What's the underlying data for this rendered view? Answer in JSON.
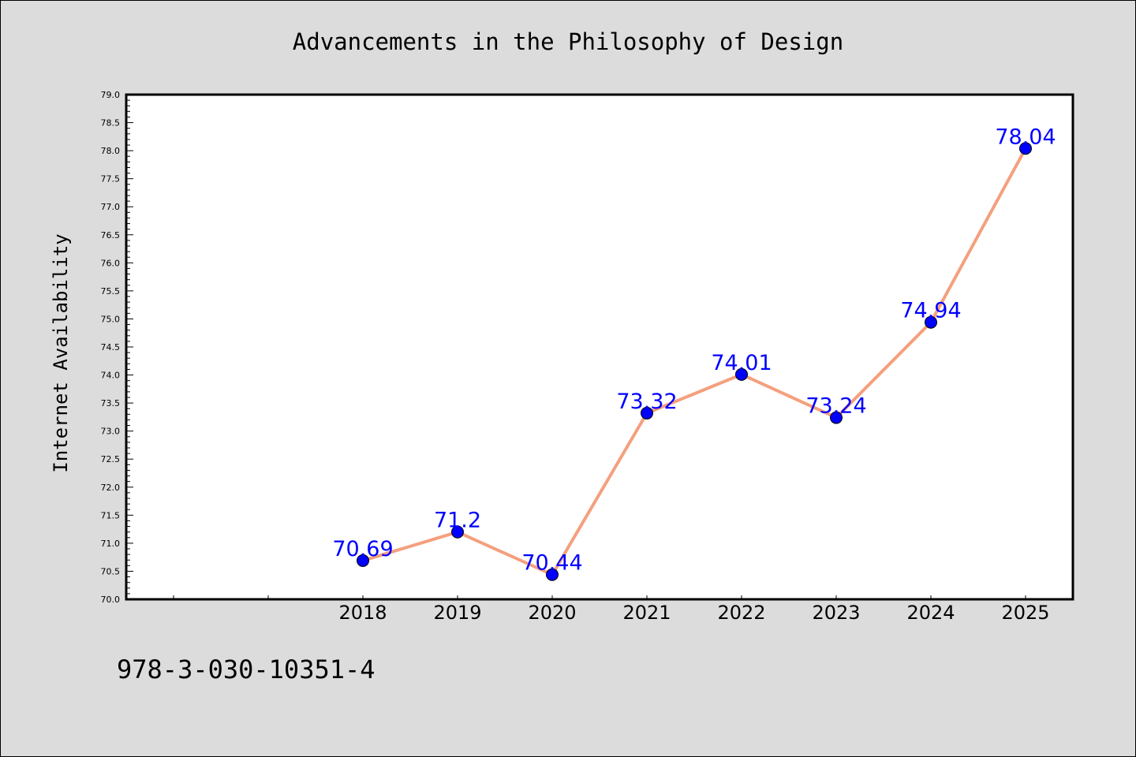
{
  "chart_data": {
    "type": "line",
    "title": "Advancements in the Philosophy of Design",
    "ylabel": "Internet Availability",
    "xlabel": "",
    "x": [
      "2018",
      "2019",
      "2020",
      "2021",
      "2022",
      "2023",
      "2024",
      "2025"
    ],
    "series": [
      {
        "values": [
          70.69,
          71.2,
          70.44,
          73.32,
          74.01,
          73.24,
          74.94,
          78.04
        ],
        "data_labels": [
          "70.69",
          "71.2",
          "70.44",
          "73.32",
          "74.01",
          "73.24",
          "74.94",
          "78.04"
        ]
      }
    ],
    "ylim": [
      70.0,
      79.0
    ],
    "y_ticks": [
      "70.0",
      "70.5",
      "71.0",
      "71.5",
      "72.0",
      "72.5",
      "73.0",
      "73.5",
      "74.0",
      "74.5",
      "75.0",
      "75.5",
      "76.0",
      "76.5",
      "77.0",
      "77.5",
      "78.0",
      "78.5",
      "79.0"
    ],
    "grid": false,
    "legend": "none",
    "colors": {
      "line": "#f4a07e",
      "marker": "#0000ff",
      "data_label": "#0000ff",
      "background": "#dcdcdc",
      "plot_background": "#ffffff"
    }
  },
  "footer": {
    "isbn": "978-3-030-10351-4"
  }
}
